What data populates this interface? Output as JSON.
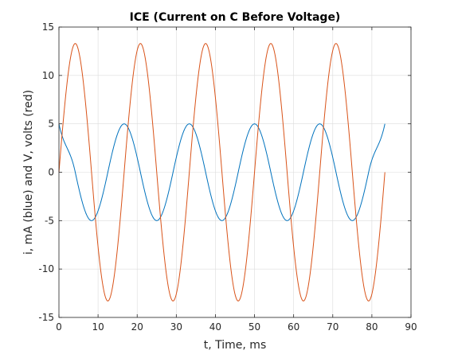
{
  "chart_data": {
    "type": "line",
    "title": "ICE (Current on C Before Voltage)",
    "xlabel": "t, Time, ms",
    "ylabel": "i, mA (blue) and V, volts (red)",
    "xlim": [
      0,
      90
    ],
    "ylim": [
      -15,
      15
    ],
    "xticks": [
      0,
      10,
      20,
      30,
      40,
      50,
      60,
      70,
      80,
      90
    ],
    "yticks": [
      -15,
      -10,
      -5,
      0,
      5,
      10,
      15
    ],
    "grid": true,
    "legend": "none",
    "series": [
      {
        "color": "#0072bd",
        "t_ms": [
          0,
          4.17,
          8.33,
          12.5,
          16.67,
          20.83,
          25,
          29.17,
          33.33,
          37.5,
          41.67,
          45.83,
          50,
          54.17,
          58.33,
          62.5,
          66.67,
          70.83,
          75,
          79.17,
          83.33
        ],
        "values": [
          5,
          0,
          -5,
          0,
          5,
          0,
          -5,
          0,
          5,
          0,
          -5,
          0,
          5,
          0,
          -5,
          0,
          5,
          0,
          -5,
          0,
          5
        ]
      },
      {
        "color": "#d95319",
        "t_ms": [
          0,
          4.17,
          8.33,
          12.5,
          16.67,
          20.83,
          25,
          29.17,
          33.33,
          37.5,
          41.67,
          45.83,
          50,
          54.17,
          58.33,
          62.5,
          66.67,
          70.83,
          75,
          79.17,
          83.33
        ],
        "values": [
          0,
          13.3,
          0,
          -13.3,
          0,
          13.3,
          0,
          -13.3,
          0,
          13.3,
          0,
          -13.3,
          0,
          13.3,
          0,
          -13.3,
          0,
          13.3,
          0,
          -13.3,
          0
        ]
      }
    ]
  }
}
